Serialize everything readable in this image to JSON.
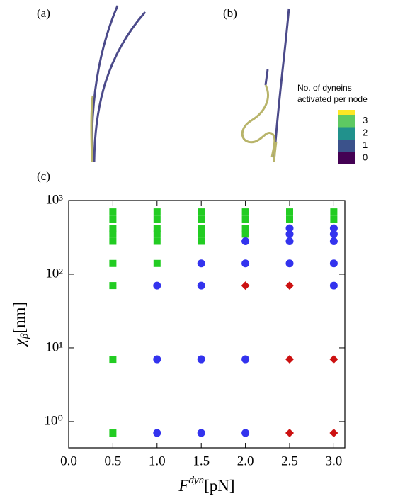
{
  "panel_labels": [
    "(a)",
    "(b)",
    "(c)"
  ],
  "colorbar": {
    "title_lines": [
      "No. of dyneins",
      "activated per node"
    ],
    "ticks": [
      0,
      1,
      2,
      3
    ],
    "colors": [
      "#440154",
      "#3b528b",
      "#21918c",
      "#5ec962",
      "#fde725"
    ]
  },
  "chart_data": {
    "type": "scatter",
    "xlabel": {
      "symbol": "F",
      "superscript": "dyn",
      "unit": "[pN]"
    },
    "ylabel": {
      "symbol": "χ",
      "subscript": "β",
      "unit": "[nm]"
    },
    "xlim": [
      0,
      3.125
    ],
    "xticks": [
      {
        "value": 0,
        "label": "0.0"
      },
      {
        "value": 0.5,
        "label": "0.5"
      },
      {
        "value": 1,
        "label": "1.0"
      },
      {
        "value": 1.5,
        "label": "1.5"
      },
      {
        "value": 2,
        "label": "2.0"
      },
      {
        "value": 2.5,
        "label": "2.5"
      },
      {
        "value": 3,
        "label": "3.0"
      }
    ],
    "ylim": [
      0.44,
      1000
    ],
    "log_y": true,
    "yticks": [
      {
        "value": 1,
        "label": "10⁰"
      },
      {
        "value": 10,
        "label": "10¹"
      },
      {
        "value": 100,
        "label": "10²"
      },
      {
        "value": 1000,
        "label": "10³"
      }
    ],
    "series": [
      {
        "marker": "square",
        "color": "#22cc22",
        "x": [
          0.5,
          0.5,
          0.5,
          0.5,
          0.5,
          0.5,
          0.5,
          0.5,
          0.5,
          1,
          1,
          1,
          1,
          1,
          1,
          1.5,
          1.5,
          1.5,
          1.5,
          1.5,
          2,
          2,
          2,
          2,
          2.5,
          2.5,
          3,
          3
        ],
        "values": [
          0.7,
          7,
          70,
          140,
          280,
          350,
          420,
          560,
          700,
          140,
          280,
          350,
          420,
          560,
          700,
          280,
          350,
          420,
          560,
          700,
          350,
          420,
          560,
          700,
          560,
          700,
          560,
          700
        ]
      },
      {
        "marker": "circle",
        "color": "#3333ee",
        "x": [
          1,
          1,
          1,
          1.5,
          1.5,
          1.5,
          1.5,
          2,
          2,
          2,
          2,
          2.5,
          2.5,
          2.5,
          2.5,
          3,
          3,
          3,
          3,
          3
        ],
        "values": [
          0.7,
          7,
          70,
          0.7,
          7,
          70,
          140,
          0.7,
          7,
          140,
          280,
          140,
          280,
          350,
          420,
          70,
          140,
          280,
          350,
          420
        ]
      },
      {
        "marker": "diamond",
        "color": "#cc1111",
        "x": [
          2,
          2.5,
          2.5,
          2.5,
          3,
          3
        ],
        "values": [
          70,
          0.7,
          7,
          70,
          0.7,
          7
        ]
      }
    ]
  }
}
